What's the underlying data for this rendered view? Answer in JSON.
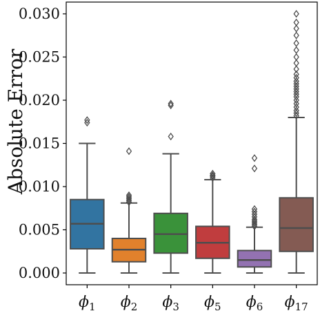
{
  "chart_data": {
    "type": "box",
    "ylabel": "Absolute Error",
    "xlabel": "",
    "ylim": [
      -0.0014,
      0.0312
    ],
    "yticks": [
      "0.000",
      "0.005",
      "0.010",
      "0.015",
      "0.020",
      "0.025",
      "0.030"
    ],
    "ytick_values": [
      0.0,
      0.005,
      0.01,
      0.015,
      0.02,
      0.025,
      0.03
    ],
    "grid": false,
    "categories": [
      {
        "symbol": "ϕ",
        "sub": "1"
      },
      {
        "symbol": "ϕ",
        "sub": "2"
      },
      {
        "symbol": "ϕ",
        "sub": "3"
      },
      {
        "symbol": "ϕ",
        "sub": "5"
      },
      {
        "symbol": "ϕ",
        "sub": "6"
      },
      {
        "symbol": "ϕ",
        "sub": "17"
      }
    ],
    "boxes": [
      {
        "whisker_low": 0.0,
        "q1": 0.0028,
        "median": 0.0057,
        "q3": 0.0085,
        "whisker_high": 0.015,
        "fliers": [
          0.0174,
          0.0177
        ]
      },
      {
        "whisker_low": 0.0,
        "q1": 0.0013,
        "median": 0.0027,
        "q3": 0.004,
        "whisker_high": 0.0081,
        "fliers": [
          0.0082,
          0.0084,
          0.0086,
          0.0088,
          0.009,
          0.0141
        ]
      },
      {
        "whisker_low": 0.0,
        "q1": 0.0023,
        "median": 0.0045,
        "q3": 0.0069,
        "whisker_high": 0.0138,
        "fliers": [
          0.0158,
          0.0194,
          0.0196
        ]
      },
      {
        "whisker_low": 0.0,
        "q1": 0.0017,
        "median": 0.0035,
        "q3": 0.0054,
        "whisker_high": 0.0108,
        "fliers": [
          0.011,
          0.0112,
          0.0113,
          0.0115
        ]
      },
      {
        "whisker_low": 0.0,
        "q1": 0.0007,
        "median": 0.0015,
        "q3": 0.0026,
        "whisker_high": 0.0053,
        "fliers": [
          0.0054,
          0.0056,
          0.0058,
          0.006,
          0.0062,
          0.0065,
          0.0068,
          0.0071,
          0.0074,
          0.0121,
          0.0133
        ]
      },
      {
        "whisker_low": 0.0,
        "q1": 0.0025,
        "median": 0.0052,
        "q3": 0.0087,
        "whisker_high": 0.018,
        "fliers": [
          0.0182,
          0.0185,
          0.0188,
          0.0192,
          0.0196,
          0.02,
          0.0204,
          0.0207,
          0.021,
          0.0213,
          0.0216,
          0.0219,
          0.0222,
          0.0226,
          0.023,
          0.0236,
          0.0243,
          0.025,
          0.0258,
          0.0266,
          0.0275,
          0.0283,
          0.029,
          0.03
        ]
      }
    ],
    "colors": [
      "#3274a1",
      "#e1812c",
      "#3a923a",
      "#c03d3e",
      "#9372b2",
      "#845b53"
    ],
    "line_color": "#4d4d4d"
  }
}
